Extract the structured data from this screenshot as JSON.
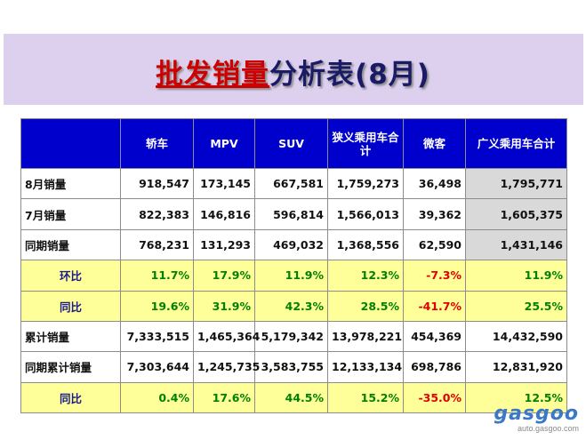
{
  "title": {
    "part1": "批发销量",
    "part2": "分析表(8月)"
  },
  "table": {
    "headers": [
      "",
      "轿车",
      "MPV",
      "SUV",
      "狭义乘用车合计",
      "微客",
      "广义乘用车合计"
    ],
    "rows": [
      {
        "type": "value",
        "label": "8月销量",
        "values": [
          "918,547",
          "173,145",
          "667,581",
          "1,759,273",
          "36,498",
          "1,795,771"
        ]
      },
      {
        "type": "value",
        "label": "7月销量",
        "values": [
          "822,383",
          "146,816",
          "596,814",
          "1,566,013",
          "39,362",
          "1,605,375"
        ]
      },
      {
        "type": "value",
        "label": "同期销量",
        "values": [
          "768,231",
          "131,293",
          "469,032",
          "1,368,556",
          "62,590",
          "1,431,146"
        ]
      },
      {
        "type": "ratio",
        "label": "环比",
        "values": [
          "11.7%",
          "17.9%",
          "11.9%",
          "12.3%",
          "-7.3%",
          "11.9%"
        ]
      },
      {
        "type": "ratio",
        "label": "同比",
        "values": [
          "19.6%",
          "31.9%",
          "42.3%",
          "28.5%",
          "-41.7%",
          "25.5%"
        ]
      },
      {
        "type": "value",
        "label": "累计销量",
        "values": [
          "7,333,515",
          "1,465,364",
          "5,179,342",
          "13,978,221",
          "454,369",
          "14,432,590"
        ]
      },
      {
        "type": "value",
        "label": "同期累计销量",
        "values": [
          "7,303,644",
          "1,245,735",
          "3,583,755",
          "12,133,134",
          "698,786",
          "12,831,920"
        ]
      },
      {
        "type": "ratio",
        "label": "同比",
        "values": [
          "0.4%",
          "17.6%",
          "44.5%",
          "15.2%",
          "-35.0%",
          "12.5%"
        ]
      }
    ]
  },
  "watermark": {
    "logo": "gasgoo",
    "url": "auto.gasgoo.com"
  },
  "colors": {
    "header_bg": "#0000cc",
    "ratio_row_bg": "#ffff99",
    "positive": "#008000",
    "negative": "#e00000",
    "banner_bg": "#ddd0ee"
  }
}
